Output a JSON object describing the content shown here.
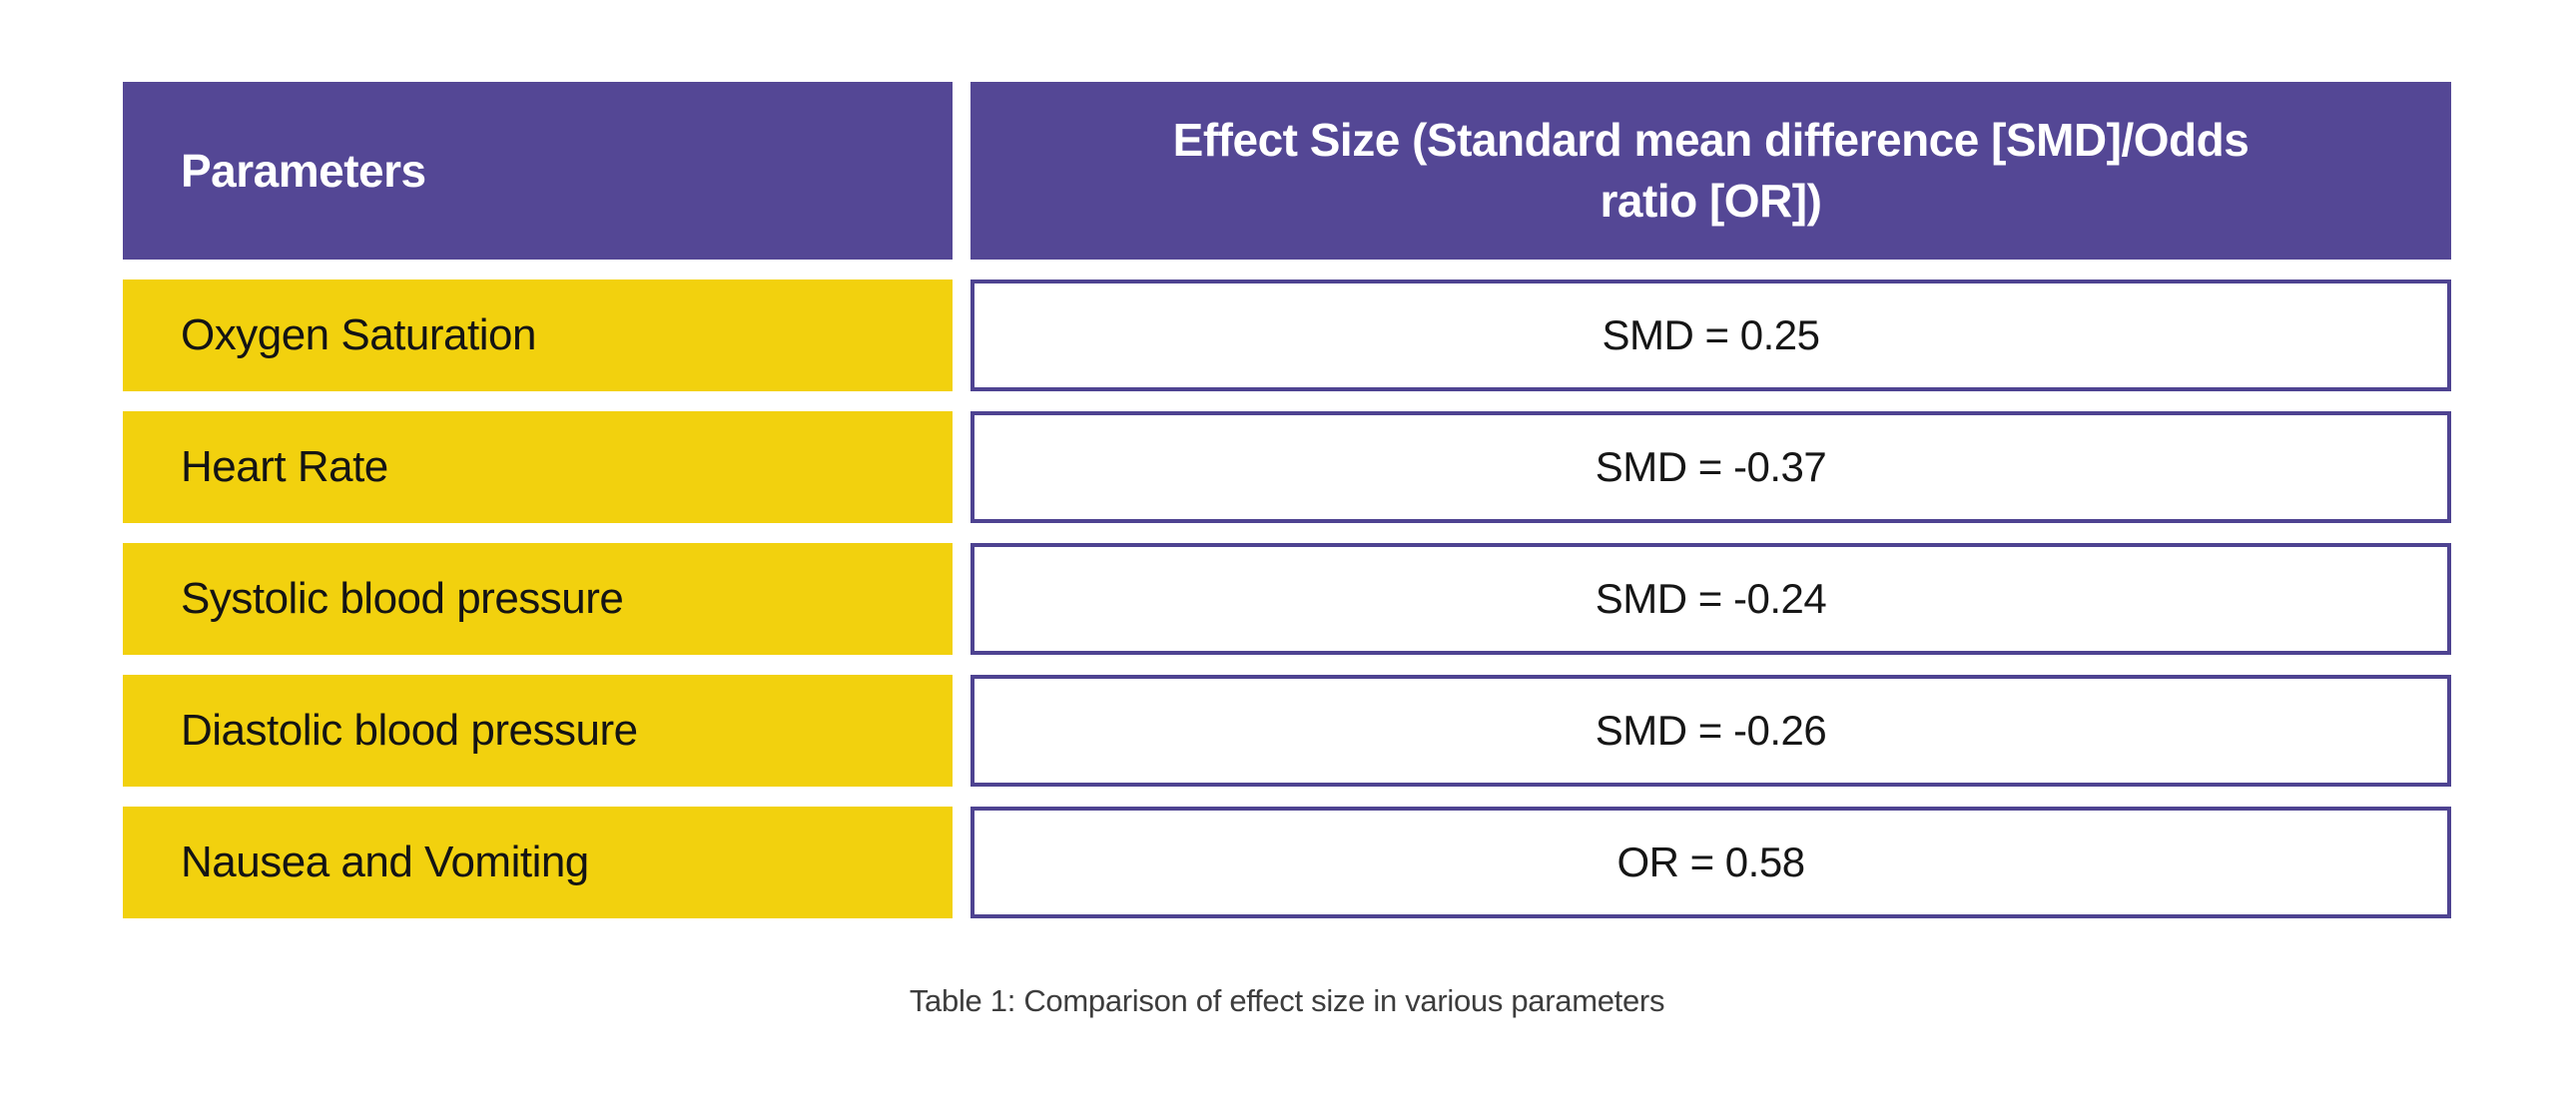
{
  "table": {
    "header": {
      "parameters_label": "Parameters",
      "effect_size_label": "Effect Size (Standard mean difference [SMD]/Odds ratio [OR])"
    },
    "rows": [
      {
        "parameter": "Oxygen Saturation",
        "effect_size": "SMD = 0.25"
      },
      {
        "parameter": "Heart Rate",
        "effect_size": "SMD = -0.37"
      },
      {
        "parameter": "Systolic blood pressure",
        "effect_size": "SMD = -0.24"
      },
      {
        "parameter": "Diastolic blood pressure",
        "effect_size": "SMD = -0.26"
      },
      {
        "parameter": "Nausea and Vomiting",
        "effect_size": "OR = 0.58"
      }
    ],
    "caption": "Table 1: Comparison of effect size in various parameters"
  },
  "colors": {
    "header_bg": "#544795",
    "header_text": "#ffffff",
    "param_bg": "#f2d10e",
    "value_border": "#4e4391",
    "value_bg": "#ffffff",
    "body_text": "#161616",
    "caption_text": "#3d3d3d",
    "page_bg": "#ffffff"
  },
  "chart_data": {
    "type": "table",
    "title": "Table 1: Comparison of effect size in various parameters",
    "columns": [
      "Parameters",
      "Effect Size (Standard mean difference [SMD]/Odds ratio [OR])"
    ],
    "rows": [
      [
        "Oxygen Saturation",
        "SMD = 0.25"
      ],
      [
        "Heart Rate",
        "SMD = -0.37"
      ],
      [
        "Systolic blood pressure",
        "SMD = -0.24"
      ],
      [
        "Diastolic blood pressure",
        "SMD = -0.26"
      ],
      [
        "Nausea and Vomiting",
        "OR = 0.58"
      ]
    ],
    "values": [
      {
        "parameter": "Oxygen Saturation",
        "measure": "SMD",
        "value": 0.25
      },
      {
        "parameter": "Heart Rate",
        "measure": "SMD",
        "value": -0.37
      },
      {
        "parameter": "Systolic blood pressure",
        "measure": "SMD",
        "value": -0.24
      },
      {
        "parameter": "Diastolic blood pressure",
        "measure": "SMD",
        "value": -0.26
      },
      {
        "parameter": "Nausea and Vomiting",
        "measure": "OR",
        "value": 0.58
      }
    ],
    "legend_position": "none",
    "grid": false
  }
}
